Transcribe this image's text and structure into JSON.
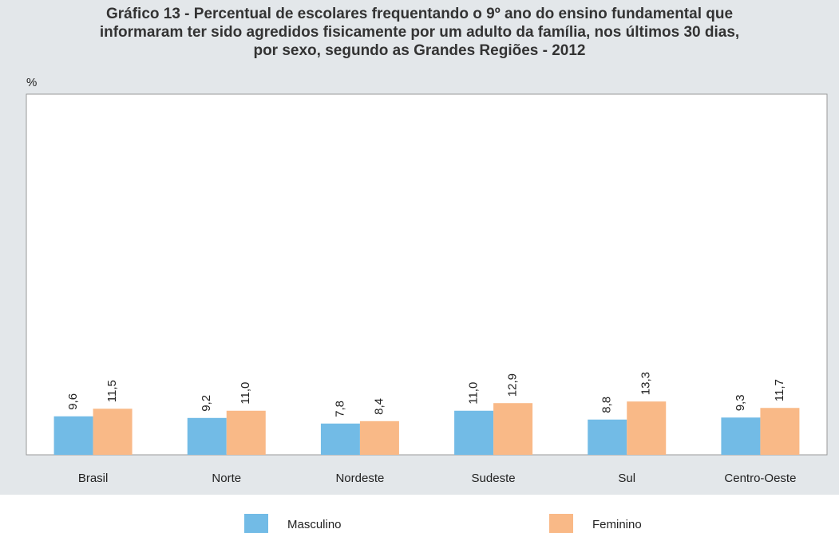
{
  "chart_data": {
    "type": "bar",
    "title": "Gráfico 13 - Percentual de escolares frequentando o 9º ano do ensino fundamental que\ninformaram ter sido agredidos fisicamente por um adulto da família, nos últimos 30 dias,\npor sexo, segundo as Grandes Regiões - 2012",
    "y_label": "%",
    "categories": [
      "Brasil",
      "Norte",
      "Nordeste",
      "Sudeste",
      "Sul",
      "Centro-Oeste"
    ],
    "series": [
      {
        "name": "Masculino",
        "color": "#72bbe6",
        "values": [
          9.6,
          9.2,
          7.8,
          11.0,
          8.8,
          9.3
        ],
        "value_labels": [
          "9,6",
          "9,2",
          "7,8",
          "11,0",
          "8,8",
          "9,3"
        ]
      },
      {
        "name": "Feminino",
        "color": "#f9b987",
        "values": [
          11.5,
          11.0,
          8.4,
          12.9,
          13.3,
          11.7
        ],
        "value_labels": [
          "11,5",
          "11,0",
          "8,4",
          "12,9",
          "13,3",
          "11,7"
        ]
      }
    ],
    "ylim": [
      0,
      90
    ],
    "legend": "bottom"
  }
}
